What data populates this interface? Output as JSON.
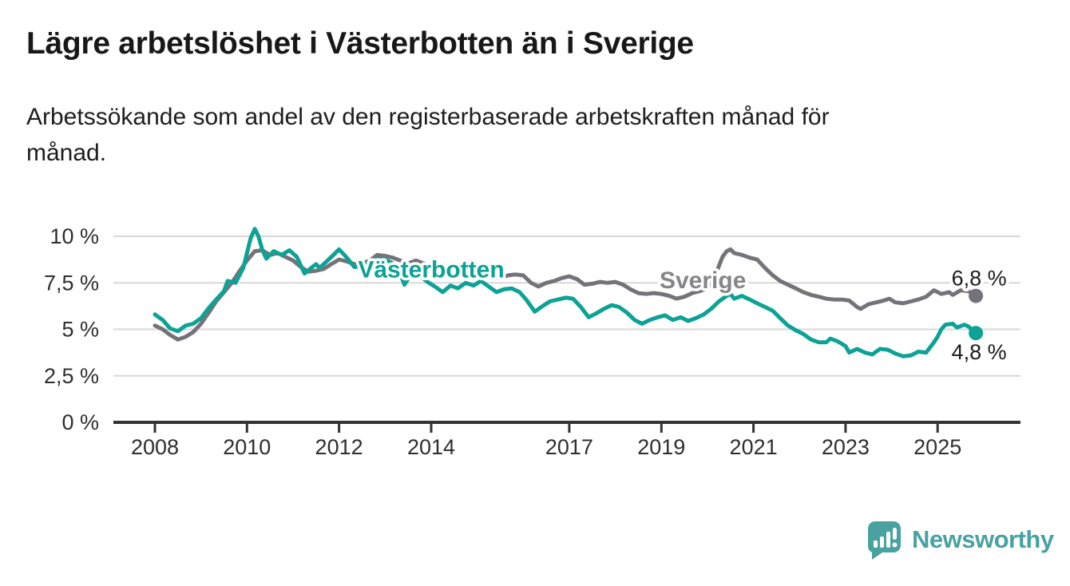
{
  "header": {
    "title": "Lägre arbetslöshet i Västerbotten än i Sverige",
    "subtitle_lines": [
      "Arbetssökande som andel av den registerbaserade arbetskraften månad för",
      "månad."
    ]
  },
  "footer": {
    "brand": "Newsworthy"
  },
  "colors": {
    "vasterbotten_teal": "#0ca295",
    "sverige_gray": "#757379",
    "sverige_label_gray": "#85858a",
    "axis_dark": "#333333",
    "gridline": "#d8d8d8",
    "tick_text": "#2e2e2e",
    "value_text": "#1b1b1b",
    "brand_teal": "#49a2a1"
  },
  "chart_data": {
    "type": "line",
    "title": "Lägre arbetslöshet i Västerbotten än i Sverige",
    "unit": "%",
    "x_axis": {
      "range": [
        2007.1,
        2026.8
      ],
      "ticks": [
        {
          "value": 2008,
          "label": "2008"
        },
        {
          "value": 2010,
          "label": "2010"
        },
        {
          "value": 2012,
          "label": "2012"
        },
        {
          "value": 2014,
          "label": "2014"
        },
        {
          "value": 2017,
          "label": "2017"
        },
        {
          "value": 2019,
          "label": "2019"
        },
        {
          "value": 2021,
          "label": "2021"
        },
        {
          "value": 2023,
          "label": "2023"
        },
        {
          "value": 2025,
          "label": "2025"
        }
      ]
    },
    "y_axis": {
      "range": [
        0,
        10.5
      ],
      "ticks": [
        {
          "value": 0,
          "label": "0 %"
        },
        {
          "value": 2.5,
          "label": "2,5 %"
        },
        {
          "value": 5,
          "label": "5 %"
        },
        {
          "value": 7.5,
          "label": "7,5 %"
        },
        {
          "value": 10,
          "label": "10 %"
        }
      ]
    },
    "series": [
      {
        "name": "Sverige",
        "color_key": "sverige_gray",
        "end_label": "6,8 %",
        "end_value": 6.8,
        "end_label_offset": [
          4,
          -13
        ],
        "points": [
          [
            2008.0,
            5.2
          ],
          [
            2008.17,
            5.0
          ],
          [
            2008.33,
            4.7
          ],
          [
            2008.5,
            4.45
          ],
          [
            2008.67,
            4.6
          ],
          [
            2008.83,
            4.85
          ],
          [
            2009.0,
            5.3
          ],
          [
            2009.17,
            5.9
          ],
          [
            2009.33,
            6.5
          ],
          [
            2009.5,
            7.0
          ],
          [
            2009.67,
            7.5
          ],
          [
            2009.83,
            8.1
          ],
          [
            2010.0,
            8.7
          ],
          [
            2010.17,
            9.2
          ],
          [
            2010.33,
            9.25
          ],
          [
            2010.5,
            9.0
          ],
          [
            2010.67,
            9.1
          ],
          [
            2010.83,
            8.9
          ],
          [
            2011.0,
            8.7
          ],
          [
            2011.17,
            8.35
          ],
          [
            2011.33,
            8.1
          ],
          [
            2011.5,
            8.15
          ],
          [
            2011.67,
            8.25
          ],
          [
            2011.83,
            8.5
          ],
          [
            2012.0,
            8.75
          ],
          [
            2012.17,
            8.65
          ],
          [
            2012.33,
            8.5
          ],
          [
            2012.5,
            8.55
          ],
          [
            2012.67,
            8.7
          ],
          [
            2012.83,
            9.0
          ],
          [
            2013.0,
            8.95
          ],
          [
            2013.17,
            8.85
          ],
          [
            2013.33,
            8.7
          ],
          [
            2013.5,
            8.55
          ],
          [
            2013.67,
            8.7
          ],
          [
            2013.83,
            8.55
          ],
          [
            2014.0,
            8.4
          ],
          [
            2014.17,
            8.2
          ],
          [
            2014.33,
            8.05
          ],
          [
            2014.5,
            7.9
          ],
          [
            2014.67,
            7.95
          ],
          [
            2014.83,
            7.9
          ],
          [
            2015.0,
            8.05
          ],
          [
            2015.17,
            7.95
          ],
          [
            2015.33,
            7.85
          ],
          [
            2015.5,
            7.75
          ],
          [
            2015.67,
            7.9
          ],
          [
            2015.83,
            7.95
          ],
          [
            2016.0,
            7.9
          ],
          [
            2016.17,
            7.5
          ],
          [
            2016.33,
            7.3
          ],
          [
            2016.5,
            7.5
          ],
          [
            2016.67,
            7.6
          ],
          [
            2016.83,
            7.75
          ],
          [
            2017.0,
            7.85
          ],
          [
            2017.17,
            7.7
          ],
          [
            2017.33,
            7.4
          ],
          [
            2017.5,
            7.45
          ],
          [
            2017.67,
            7.55
          ],
          [
            2017.83,
            7.5
          ],
          [
            2018.0,
            7.55
          ],
          [
            2018.17,
            7.4
          ],
          [
            2018.33,
            7.15
          ],
          [
            2018.5,
            6.95
          ],
          [
            2018.67,
            6.9
          ],
          [
            2018.83,
            6.95
          ],
          [
            2019.0,
            6.9
          ],
          [
            2019.17,
            6.8
          ],
          [
            2019.33,
            6.65
          ],
          [
            2019.5,
            6.75
          ],
          [
            2019.67,
            6.95
          ],
          [
            2019.83,
            7.05
          ],
          [
            2020.0,
            7.2
          ],
          [
            2020.17,
            7.9
          ],
          [
            2020.33,
            8.9
          ],
          [
            2020.42,
            9.2
          ],
          [
            2020.5,
            9.3
          ],
          [
            2020.58,
            9.1
          ],
          [
            2020.75,
            9.0
          ],
          [
            2020.92,
            8.85
          ],
          [
            2021.08,
            8.75
          ],
          [
            2021.25,
            8.3
          ],
          [
            2021.42,
            7.9
          ],
          [
            2021.58,
            7.6
          ],
          [
            2021.75,
            7.4
          ],
          [
            2021.92,
            7.2
          ],
          [
            2022.08,
            7.0
          ],
          [
            2022.25,
            6.85
          ],
          [
            2022.42,
            6.75
          ],
          [
            2022.58,
            6.65
          ],
          [
            2022.75,
            6.6
          ],
          [
            2022.92,
            6.6
          ],
          [
            2023.08,
            6.55
          ],
          [
            2023.25,
            6.2
          ],
          [
            2023.33,
            6.1
          ],
          [
            2023.5,
            6.35
          ],
          [
            2023.67,
            6.45
          ],
          [
            2023.83,
            6.55
          ],
          [
            2023.95,
            6.65
          ],
          [
            2024.08,
            6.45
          ],
          [
            2024.25,
            6.4
          ],
          [
            2024.42,
            6.5
          ],
          [
            2024.58,
            6.6
          ],
          [
            2024.75,
            6.75
          ],
          [
            2024.92,
            7.1
          ],
          [
            2025.08,
            6.9
          ],
          [
            2025.25,
            7.0
          ],
          [
            2025.33,
            6.85
          ],
          [
            2025.5,
            7.1
          ],
          [
            2025.67,
            7.05
          ],
          [
            2025.83,
            6.8
          ]
        ]
      },
      {
        "name": "Västerbotten",
        "color_key": "vasterbotten_teal",
        "end_label": "4,8 %",
        "end_value": 4.8,
        "end_label_offset": [
          4,
          33
        ],
        "points": [
          [
            2008.0,
            5.8
          ],
          [
            2008.17,
            5.5
          ],
          [
            2008.33,
            5.05
          ],
          [
            2008.5,
            4.9
          ],
          [
            2008.67,
            5.2
          ],
          [
            2008.83,
            5.3
          ],
          [
            2009.0,
            5.6
          ],
          [
            2009.17,
            6.15
          ],
          [
            2009.33,
            6.6
          ],
          [
            2009.5,
            7.05
          ],
          [
            2009.58,
            7.6
          ],
          [
            2009.75,
            7.5
          ],
          [
            2009.92,
            8.3
          ],
          [
            2010.0,
            9.1
          ],
          [
            2010.08,
            9.9
          ],
          [
            2010.17,
            10.4
          ],
          [
            2010.25,
            10.0
          ],
          [
            2010.33,
            9.3
          ],
          [
            2010.42,
            8.8
          ],
          [
            2010.58,
            9.2
          ],
          [
            2010.75,
            9.0
          ],
          [
            2010.92,
            9.25
          ],
          [
            2011.08,
            8.9
          ],
          [
            2011.25,
            8.0
          ],
          [
            2011.42,
            8.35
          ],
          [
            2011.5,
            8.5
          ],
          [
            2011.58,
            8.3
          ],
          [
            2011.75,
            8.7
          ],
          [
            2011.92,
            9.1
          ],
          [
            2012.0,
            9.3
          ],
          [
            2012.17,
            8.85
          ],
          [
            2012.33,
            8.35
          ],
          [
            2012.5,
            8.4
          ],
          [
            2012.67,
            8.65
          ],
          [
            2012.83,
            8.8
          ],
          [
            2013.0,
            8.75
          ],
          [
            2013.17,
            8.55
          ],
          [
            2013.33,
            8.0
          ],
          [
            2013.42,
            7.4
          ],
          [
            2013.58,
            8.05
          ],
          [
            2013.75,
            7.9
          ],
          [
            2013.92,
            7.55
          ],
          [
            2014.08,
            7.3
          ],
          [
            2014.25,
            7.0
          ],
          [
            2014.42,
            7.35
          ],
          [
            2014.58,
            7.2
          ],
          [
            2014.75,
            7.5
          ],
          [
            2014.92,
            7.35
          ],
          [
            2015.08,
            7.6
          ],
          [
            2015.25,
            7.3
          ],
          [
            2015.42,
            7.0
          ],
          [
            2015.58,
            7.15
          ],
          [
            2015.75,
            7.2
          ],
          [
            2015.92,
            7.0
          ],
          [
            2016.08,
            6.55
          ],
          [
            2016.25,
            5.95
          ],
          [
            2016.42,
            6.25
          ],
          [
            2016.58,
            6.5
          ],
          [
            2016.75,
            6.6
          ],
          [
            2016.92,
            6.7
          ],
          [
            2017.08,
            6.65
          ],
          [
            2017.25,
            6.2
          ],
          [
            2017.42,
            5.65
          ],
          [
            2017.58,
            5.85
          ],
          [
            2017.75,
            6.1
          ],
          [
            2017.92,
            6.3
          ],
          [
            2018.08,
            6.2
          ],
          [
            2018.25,
            5.9
          ],
          [
            2018.42,
            5.5
          ],
          [
            2018.58,
            5.3
          ],
          [
            2018.75,
            5.5
          ],
          [
            2018.92,
            5.65
          ],
          [
            2019.08,
            5.75
          ],
          [
            2019.25,
            5.5
          ],
          [
            2019.42,
            5.65
          ],
          [
            2019.58,
            5.45
          ],
          [
            2019.75,
            5.6
          ],
          [
            2019.92,
            5.8
          ],
          [
            2020.08,
            6.1
          ],
          [
            2020.25,
            6.5
          ],
          [
            2020.42,
            6.8
          ],
          [
            2020.5,
            6.9
          ],
          [
            2020.58,
            6.65
          ],
          [
            2020.75,
            6.8
          ],
          [
            2020.92,
            6.6
          ],
          [
            2021.08,
            6.4
          ],
          [
            2021.25,
            6.2
          ],
          [
            2021.42,
            6.0
          ],
          [
            2021.58,
            5.6
          ],
          [
            2021.75,
            5.2
          ],
          [
            2021.92,
            4.95
          ],
          [
            2022.08,
            4.75
          ],
          [
            2022.25,
            4.45
          ],
          [
            2022.42,
            4.3
          ],
          [
            2022.58,
            4.3
          ],
          [
            2022.67,
            4.5
          ],
          [
            2022.83,
            4.35
          ],
          [
            2023.0,
            4.1
          ],
          [
            2023.08,
            3.75
          ],
          [
            2023.25,
            3.95
          ],
          [
            2023.42,
            3.75
          ],
          [
            2023.58,
            3.65
          ],
          [
            2023.75,
            3.95
          ],
          [
            2023.92,
            3.9
          ],
          [
            2024.08,
            3.7
          ],
          [
            2024.25,
            3.55
          ],
          [
            2024.42,
            3.6
          ],
          [
            2024.58,
            3.8
          ],
          [
            2024.75,
            3.75
          ],
          [
            2024.92,
            4.3
          ],
          [
            2025.0,
            4.6
          ],
          [
            2025.08,
            5.0
          ],
          [
            2025.17,
            5.25
          ],
          [
            2025.33,
            5.3
          ],
          [
            2025.42,
            5.1
          ],
          [
            2025.58,
            5.25
          ],
          [
            2025.67,
            5.15
          ],
          [
            2025.83,
            4.8
          ]
        ]
      }
    ],
    "series_labels": [
      {
        "text": "Västerbotten",
        "x": 2014.0,
        "y": 7.8,
        "color_key": "vasterbotten_teal"
      },
      {
        "text": "Sverige",
        "x": 2019.9,
        "y": 7.2,
        "color_key": "sverige_label_gray"
      }
    ],
    "legend_position": "inline",
    "grid": "horizontal"
  }
}
